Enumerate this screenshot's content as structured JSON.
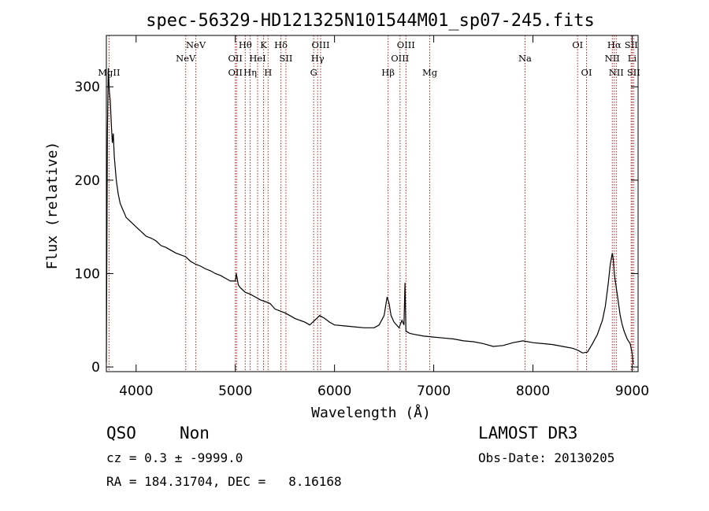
{
  "chart_data": {
    "type": "line",
    "title": "spec-56329-HD121325N101544M01_sp07-245.fits",
    "xlabel": "Wavelength (Å)",
    "ylabel": "Flux (relative)",
    "xlim": [
      3700,
      9060
    ],
    "ylim": [
      -5,
      355
    ],
    "xticks": [
      4000,
      5000,
      6000,
      7000,
      8000,
      9000
    ],
    "yticks": [
      0,
      100,
      200,
      300
    ],
    "grid": false,
    "series": [
      {
        "x": [
          3700,
          3710,
          3720,
          3730,
          3740,
          3750,
          3760,
          3770,
          3780,
          3800,
          3820,
          3840,
          3860,
          3880,
          3900,
          3950,
          4000,
          4050,
          4100,
          4150,
          4200,
          4250,
          4300,
          4350,
          4400,
          4450,
          4500,
          4550,
          4600,
          4650,
          4700,
          4750,
          4800,
          4850,
          4900,
          4950,
          5000,
          5010,
          5030,
          5050,
          5100,
          5150,
          5200,
          5250,
          5300,
          5350,
          5400,
          5450,
          5500,
          5550,
          5600,
          5650,
          5700,
          5750,
          5800,
          5850,
          5900,
          5950,
          6000,
          6100,
          6200,
          6300,
          6400,
          6450,
          6500,
          6530,
          6550,
          6570,
          6600,
          6650,
          6680,
          6700,
          6710,
          6720,
          6730,
          6740,
          6760,
          6800,
          6900,
          7000,
          7100,
          7200,
          7300,
          7400,
          7500,
          7600,
          7700,
          7800,
          7900,
          8000,
          8100,
          8200,
          8300,
          8400,
          8450,
          8500,
          8550,
          8600,
          8650,
          8700,
          8730,
          8760,
          8780,
          8800,
          8810,
          8820,
          8840,
          8860,
          8880,
          8900,
          8920,
          8950,
          8980,
          9000,
          9010
        ],
        "y": [
          5,
          250,
          320,
          295,
          285,
          260,
          240,
          250,
          225,
          200,
          185,
          175,
          170,
          165,
          160,
          155,
          150,
          145,
          140,
          138,
          135,
          130,
          128,
          125,
          122,
          120,
          118,
          113,
          110,
          108,
          105,
          103,
          100,
          98,
          95,
          92,
          92,
          100,
          88,
          85,
          80,
          78,
          75,
          72,
          70,
          68,
          62,
          60,
          58,
          55,
          52,
          50,
          48,
          45,
          50,
          55,
          52,
          48,
          45,
          44,
          43,
          42,
          42,
          45,
          55,
          75,
          68,
          55,
          48,
          42,
          50,
          45,
          90,
          38,
          38,
          37,
          36,
          35,
          33,
          32,
          31,
          30,
          28,
          27,
          25,
          22,
          23,
          26,
          28,
          26,
          25,
          24,
          22,
          20,
          18,
          15,
          16,
          25,
          35,
          50,
          65,
          90,
          110,
          122,
          115,
          100,
          85,
          70,
          55,
          45,
          38,
          30,
          25,
          15,
          3
        ]
      }
    ],
    "line_markers": [
      {
        "x": 3727,
        "labels": [
          "MgII"
        ],
        "row": 2
      },
      {
        "x": 4500,
        "labels": [
          "NeV"
        ],
        "row": 1
      },
      {
        "x": 4602,
        "labels": [
          "NeV"
        ],
        "row": 0
      },
      {
        "x": 5000,
        "labels": [
          "OII",
          "OII"
        ],
        "row": 1
      },
      {
        "x": 5012,
        "labels": [],
        "row": 1
      },
      {
        "x": 5100,
        "labels": [
          "Hθ"
        ],
        "row": 0
      },
      {
        "x": 5150,
        "labels": [
          "Hη"
        ],
        "row": 2
      },
      {
        "x": 5225,
        "labels": [
          "HeI"
        ],
        "row": 1
      },
      {
        "x": 5285,
        "labels": [
          "K"
        ],
        "row": 0
      },
      {
        "x": 5330,
        "labels": [
          "H"
        ],
        "row": 2
      },
      {
        "x": 5460,
        "labels": [
          "Hδ"
        ],
        "row": 0
      },
      {
        "x": 5510,
        "labels": [
          "SII"
        ],
        "row": 1
      },
      {
        "x": 5790,
        "labels": [
          "G"
        ],
        "row": 2
      },
      {
        "x": 5830,
        "labels": [
          "Hγ"
        ],
        "row": 1
      },
      {
        "x": 5860,
        "labels": [
          "OIII"
        ],
        "row": 0
      },
      {
        "x": 6540,
        "labels": [
          "Hβ"
        ],
        "row": 2
      },
      {
        "x": 6660,
        "labels": [
          "OIII"
        ],
        "row": 1
      },
      {
        "x": 6720,
        "labels": [
          "OIII"
        ],
        "row": 0
      },
      {
        "x": 6960,
        "labels": [
          "Mg"
        ],
        "row": 2
      },
      {
        "x": 7920,
        "labels": [
          "Na"
        ],
        "row": 1
      },
      {
        "x": 8450,
        "labels": [
          "OI"
        ],
        "row": 0
      },
      {
        "x": 8540,
        "labels": [
          "OI"
        ],
        "row": 2
      },
      {
        "x": 8800,
        "labels": [
          "NII"
        ],
        "row": 1
      },
      {
        "x": 8820,
        "labels": [
          "Hα"
        ],
        "row": 0
      },
      {
        "x": 8840,
        "labels": [
          "NII"
        ],
        "row": 2
      },
      {
        "x": 8990,
        "labels": [
          "SII"
        ],
        "row": 0
      },
      {
        "x": 9000,
        "labels": [
          "Li"
        ],
        "row": 1
      },
      {
        "x": 9015,
        "labels": [
          "SII"
        ],
        "row": 2
      }
    ],
    "colors": {
      "spectrum": "#000000",
      "markers": "#b22222",
      "axes": "#000000"
    }
  },
  "footer": {
    "class_label": "QSO",
    "subclass_label": "Non",
    "cz_text": "cz = 0.3 ± -9999.0",
    "radec_text": "RA = 184.31704, DEC =   8.16168",
    "survey_label": "LAMOST DR3",
    "obs_date_text": "Obs-Date: 20130205"
  }
}
